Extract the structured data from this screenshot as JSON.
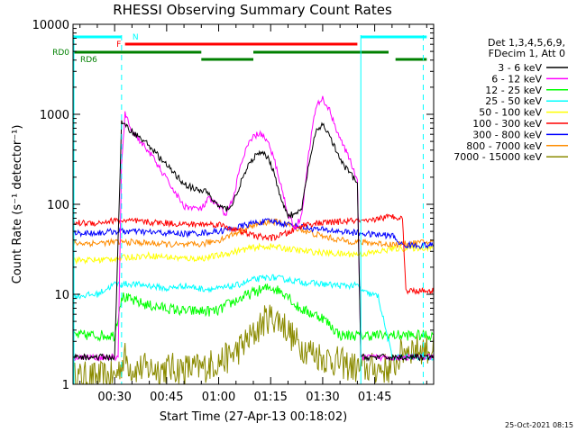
{
  "chart_data": {
    "type": "line",
    "title": "RHESSI Observing Summary Count Rates",
    "xlabel": "Start Time (27-Apr-13 00:18:02)",
    "ylabel": "Count Rate (s⁻¹ detector⁻¹)",
    "y_scale": "log",
    "ylim": [
      1,
      10000
    ],
    "y_tick_labels": [
      "1",
      "10",
      "100",
      "1000",
      "10000"
    ],
    "xlim_minutes": [
      18,
      122
    ],
    "x_tick_labels": [
      "00:30",
      "00:45",
      "01:00",
      "01:15",
      "01:30",
      "01:45"
    ],
    "x_tick_values_minutes": [
      30,
      45,
      60,
      75,
      90,
      105
    ],
    "timestamp": "25-Oct-2021 08:15",
    "legend": {
      "placement": "right",
      "header": [
        "Det 1,3,4,5,6,9,",
        "FDecim 1, Att 0"
      ]
    },
    "series": [
      {
        "name": "3 - 6 keV",
        "color": "#000000",
        "t": [
          18,
          25,
          30,
          32,
          35,
          40,
          45,
          50,
          52,
          55,
          56,
          58,
          60,
          62,
          64,
          66,
          68,
          70,
          72,
          74,
          76,
          78,
          80,
          82,
          84,
          86,
          88,
          90,
          92,
          94,
          96,
          98,
          100,
          101,
          103,
          106,
          110,
          114,
          120
        ],
        "v": [
          2,
          2,
          2,
          800,
          650,
          450,
          270,
          170,
          155,
          135,
          150,
          115,
          95,
          88,
          100,
          160,
          240,
          330,
          370,
          340,
          230,
          110,
          78,
          75,
          90,
          280,
          620,
          780,
          580,
          380,
          270,
          220,
          170,
          2,
          2,
          2,
          2,
          2,
          2
        ]
      },
      {
        "name": "6 - 12 keV",
        "color": "#ff00ff",
        "t": [
          18,
          29,
          31,
          32,
          33,
          35,
          40,
          45,
          48,
          50,
          55,
          57,
          60,
          62,
          64,
          66,
          68,
          70,
          72,
          74,
          76,
          78,
          80,
          82,
          84,
          86,
          88,
          90,
          92,
          94,
          96,
          98,
          100,
          101,
          104,
          110,
          120
        ],
        "v": [
          2,
          2,
          2,
          280,
          1000,
          650,
          380,
          190,
          125,
          95,
          88,
          115,
          95,
          78,
          110,
          240,
          420,
          560,
          620,
          500,
          320,
          160,
          78,
          55,
          75,
          380,
          1200,
          1500,
          1100,
          680,
          440,
          300,
          190,
          2,
          2,
          2,
          2
        ]
      },
      {
        "name": "12 - 25 keV",
        "color": "#00ff00",
        "t": [
          18,
          30,
          32,
          35,
          40,
          45,
          50,
          55,
          60,
          62,
          65,
          70,
          75,
          80,
          82,
          85,
          90,
          95,
          100,
          101,
          103,
          108,
          112,
          120
        ],
        "v": [
          3.5,
          3.5,
          9.5,
          8.5,
          7.5,
          7,
          6.5,
          6.5,
          6.5,
          7.5,
          8.5,
          10.5,
          12,
          10,
          7.5,
          6.5,
          5.5,
          3.5,
          3.5,
          3.5,
          3.5,
          3.5,
          3.5,
          3.5
        ]
      },
      {
        "name": "25 - 50 keV",
        "color": "#00ffff",
        "t": [
          18,
          25,
          30,
          35,
          40,
          45,
          50,
          55,
          60,
          65,
          70,
          75,
          80,
          85,
          90,
          95,
          100,
          102,
          106,
          110,
          113,
          120
        ],
        "v": [
          9.5,
          10,
          13,
          13,
          12.5,
          11.5,
          12.5,
          11.5,
          11.5,
          12.5,
          14.5,
          15.5,
          14.5,
          13.5,
          13,
          12.5,
          12.5,
          10.5,
          9.5,
          2,
          2,
          2
        ]
      },
      {
        "name": "50 - 100 keV",
        "color": "#ffff00",
        "t": [
          18,
          25,
          30,
          35,
          40,
          45,
          50,
          55,
          60,
          65,
          70,
          75,
          80,
          85,
          90,
          95,
          100,
          105,
          110,
          120
        ],
        "v": [
          24,
          24,
          25,
          26,
          27,
          26,
          25,
          25,
          27,
          30,
          33,
          34,
          32,
          30,
          29,
          28,
          28,
          29,
          32,
          33
        ]
      },
      {
        "name": "100 - 300 keV",
        "color": "#ff0000",
        "t": [
          18,
          25,
          30,
          35,
          40,
          45,
          50,
          55,
          60,
          65,
          70,
          75,
          80,
          85,
          90,
          95,
          100,
          103,
          106,
          110,
          113,
          114,
          118,
          120
        ],
        "v": [
          62,
          62,
          66,
          65,
          63,
          62,
          60,
          60,
          60,
          52,
          45,
          42,
          48,
          60,
          62,
          64,
          66,
          63,
          70,
          73,
          72,
          11,
          11,
          11
        ]
      },
      {
        "name": "300 - 800 keV",
        "color": "#0000ff",
        "t": [
          18,
          25,
          30,
          35,
          40,
          45,
          50,
          55,
          60,
          65,
          70,
          75,
          80,
          85,
          90,
          95,
          100,
          105,
          110,
          113,
          116,
          120
        ],
        "v": [
          48,
          48,
          50,
          50,
          49,
          48,
          47,
          48,
          50,
          55,
          62,
          65,
          60,
          55,
          52,
          50,
          48,
          46,
          45,
          35,
          35,
          35
        ]
      },
      {
        "name": "800 - 7000 keV",
        "color": "#ff8c00",
        "t": [
          18,
          25,
          30,
          35,
          40,
          45,
          50,
          55,
          60,
          65,
          70,
          75,
          80,
          85,
          90,
          95,
          100,
          105,
          110,
          113,
          120
        ],
        "v": [
          37,
          37,
          38,
          38,
          37,
          36,
          35,
          36,
          40,
          48,
          58,
          65,
          60,
          50,
          44,
          40,
          38,
          37,
          36,
          36,
          38
        ]
      },
      {
        "name": "7000 - 15000 keV",
        "color": "#8b8b00",
        "t": [
          18,
          30,
          33,
          35,
          40,
          45,
          50,
          55,
          60,
          63,
          66,
          68,
          70,
          72,
          74,
          76,
          78,
          80,
          82,
          85,
          90,
          100,
          110,
          112,
          114,
          120
        ],
        "v": [
          1.2,
          1.2,
          2,
          1.5,
          1.5,
          1.5,
          1.5,
          1.5,
          1.8,
          2,
          2.5,
          3,
          3.5,
          4.5,
          5.5,
          5.5,
          5,
          4,
          3,
          2.5,
          2,
          1.5,
          1.5,
          2,
          2.5,
          2.5
        ]
      }
    ],
    "status_bars": [
      {
        "label": "N",
        "color": "#00ffff",
        "segments": [
          [
            18,
            32
          ],
          [
            101,
            120
          ]
        ]
      },
      {
        "label": "F",
        "color": "#ff0000",
        "segments": [
          [
            33,
            100
          ]
        ]
      },
      {
        "label": "RD0",
        "color": "#008000",
        "segments": [
          [
            18,
            55
          ],
          [
            70,
            109
          ]
        ]
      },
      {
        "label": "RD6",
        "color": "#008000",
        "segments": [
          [
            55,
            70
          ],
          [
            111,
            120
          ]
        ]
      }
    ],
    "markers": [
      {
        "t": 18,
        "style": "solid",
        "color": "#00ffff"
      },
      {
        "t": 32,
        "style": "dashed",
        "color": "#00ffff"
      },
      {
        "t": 101,
        "style": "solid",
        "color": "#00ffff"
      },
      {
        "t": 119,
        "style": "dashed",
        "color": "#00ffff"
      }
    ]
  }
}
